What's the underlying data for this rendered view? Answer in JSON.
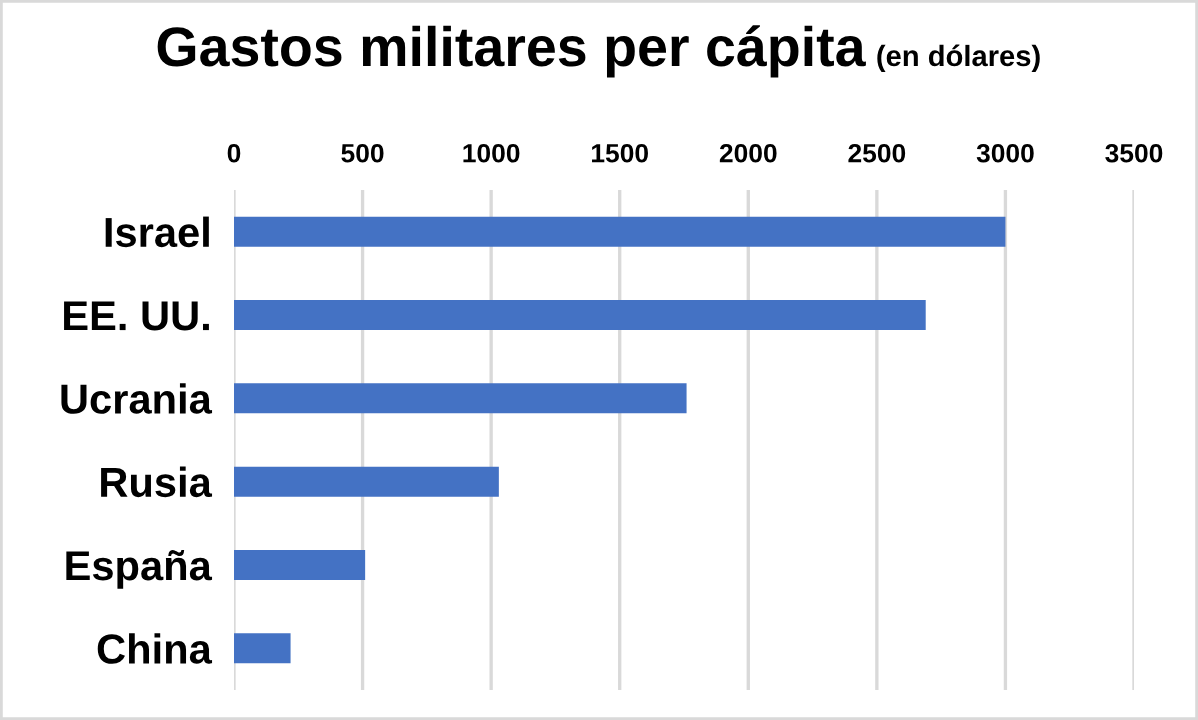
{
  "chart_data": {
    "type": "bar",
    "orientation": "horizontal",
    "title": "Gastos militares per cápita",
    "subtitle": "(en dólares)",
    "categories": [
      "Israel",
      "EE. UU.",
      "Ucrania",
      "Rusia",
      "España",
      "China"
    ],
    "values": [
      3000,
      2690,
      1760,
      1030,
      510,
      220
    ],
    "color": "#4472c4",
    "xlim": [
      0,
      3500
    ],
    "xticks": [
      0,
      500,
      1000,
      1500,
      2000,
      2500,
      3000,
      3500
    ],
    "grid": "x"
  }
}
